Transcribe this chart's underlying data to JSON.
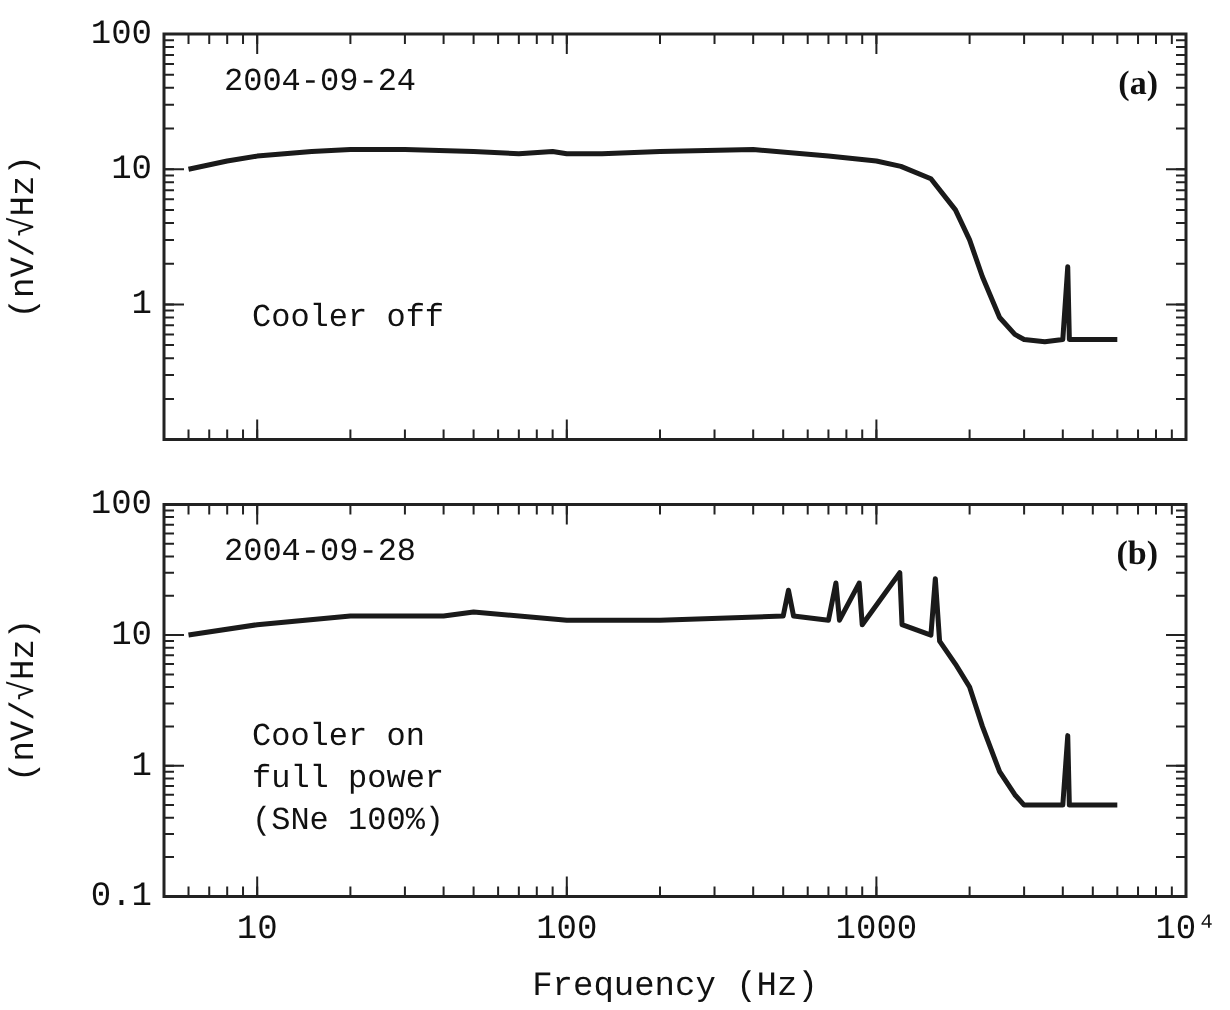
{
  "chart_data": [
    {
      "type": "line",
      "ylabel": "(nV/√Hz)",
      "log": "xy",
      "xlim": [
        5,
        10000
      ],
      "xticks": [
        10,
        100,
        1000,
        10000
      ],
      "ylim": [
        0.1,
        100
      ],
      "yticks": [
        100,
        10,
        1,
        {
          "value": 0.1,
          "label": null
        }
      ],
      "tick_labels": "y",
      "grid": false,
      "legend": false,
      "marker": "none",
      "line_style": "solid",
      "annotations": [
        "2004-09-24",
        "(a)",
        "Cooler off"
      ],
      "series": [
        {
          "color": "#1a1a1a",
          "x": [
            6,
            8,
            10,
            15,
            20,
            30,
            50,
            70,
            90,
            100,
            130,
            200,
            400,
            700,
            1000,
            1200,
            1500,
            1800,
            2000,
            2200,
            2500,
            2800,
            3000,
            3500,
            4000,
            4150,
            4200,
            5000,
            5500,
            6000
          ],
          "values": [
            10,
            11.5,
            12.5,
            13.5,
            14,
            14,
            13.5,
            13,
            13.5,
            13,
            13,
            13.5,
            14,
            12.5,
            11.5,
            10.5,
            8.5,
            5,
            3,
            1.6,
            0.8,
            0.6,
            0.55,
            0.53,
            0.55,
            1.9,
            0.55,
            0.55,
            0.55,
            0.55
          ]
        }
      ]
    },
    {
      "type": "line",
      "xlabel": "Frequency (Hz)",
      "ylabel": "(nV/√Hz)",
      "log": "xy",
      "xlim": [
        5,
        10000
      ],
      "xticks": [
        10,
        100,
        1000,
        {
          "value": 10000,
          "label": "10⁴"
        }
      ],
      "ylim": [
        0.1,
        100
      ],
      "yticks": [
        100,
        10,
        1,
        0.1
      ],
      "grid": false,
      "legend": false,
      "marker": "none",
      "line_style": "solid",
      "annotations": [
        "2004-09-28",
        "(b)",
        "Cooler on\nfull power\n(SNe 100%)"
      ],
      "series": [
        {
          "color": "#1a1a1a",
          "x": [
            6,
            10,
            20,
            40,
            50,
            100,
            200,
            500,
            520,
            540,
            700,
            740,
            760,
            880,
            900,
            1190,
            1210,
            1500,
            1550,
            1600,
            1800,
            2000,
            2200,
            2500,
            2800,
            3000,
            4000,
            4150,
            4200,
            6000
          ],
          "values": [
            10,
            12,
            14,
            14,
            15,
            13,
            13,
            14,
            22,
            14,
            13,
            25,
            13,
            25,
            12,
            30,
            12,
            10,
            27,
            9,
            6,
            4,
            2,
            0.9,
            0.6,
            0.5,
            0.5,
            1.7,
            0.5,
            0.5
          ]
        }
      ]
    }
  ]
}
